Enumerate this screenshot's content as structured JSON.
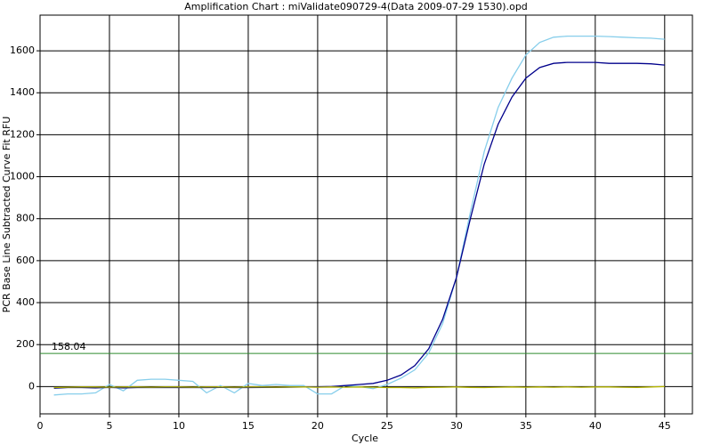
{
  "chart_data": {
    "type": "line",
    "title": "Amplification Chart : miValidate090729-4(Data 2009-07-29 1530).opd",
    "x_label": "Cycle",
    "y_label": "PCR Base Line Subtracted Curve Fit RFU",
    "x": [
      1,
      2,
      3,
      4,
      5,
      6,
      7,
      8,
      9,
      10,
      11,
      12,
      13,
      14,
      15,
      16,
      17,
      18,
      19,
      20,
      21,
      22,
      23,
      24,
      25,
      26,
      27,
      28,
      29,
      30,
      31,
      32,
      33,
      34,
      35,
      36,
      37,
      38,
      39,
      40,
      41,
      42,
      43,
      44,
      45
    ],
    "series": [
      {
        "color": "#87ceeb",
        "values": [
          -40,
          -35,
          -35,
          -30,
          10,
          -20,
          30,
          35,
          35,
          30,
          25,
          -30,
          5,
          -30,
          15,
          5,
          10,
          5,
          5,
          -35,
          -35,
          5,
          0,
          -10,
          10,
          40,
          80,
          160,
          300,
          520,
          830,
          1120,
          1330,
          1470,
          1580,
          1640,
          1665,
          1670,
          1670,
          1670,
          1668,
          1665,
          1662,
          1660,
          1655
        ]
      },
      {
        "color": "#00008b",
        "values": [
          -8,
          -5,
          -5,
          -6,
          -4,
          -6,
          -5,
          -4,
          -5,
          -4,
          -5,
          -5,
          -4,
          -5,
          -5,
          -4,
          -4,
          -3,
          -2,
          -1,
          0,
          5,
          10,
          15,
          30,
          55,
          100,
          180,
          320,
          520,
          800,
          1060,
          1250,
          1380,
          1470,
          1520,
          1540,
          1545,
          1545,
          1545,
          1540,
          1540,
          1540,
          1538,
          1532
        ]
      },
      {
        "color": "#b5b500",
        "values": [
          -5,
          -3,
          -2,
          -2,
          -3,
          -2,
          -2,
          -3,
          -2,
          -2,
          -3,
          -2,
          -2,
          -3,
          -2,
          -2,
          -3,
          -2,
          -2,
          -3,
          -2,
          -3,
          -2,
          -3,
          -5,
          -5,
          -6,
          -4,
          -3,
          -2,
          -4,
          -5,
          -3,
          -2,
          -3,
          -2,
          -3,
          -2,
          -3,
          -2,
          -2,
          -3,
          -4,
          -2,
          0
        ]
      }
    ],
    "threshold": 158.04,
    "threshold_color": "#2e8b2e",
    "xlim": [
      0,
      47
    ],
    "ylim": [
      -130,
      1770
    ],
    "xticks": [
      0,
      5,
      10,
      15,
      20,
      25,
      30,
      35,
      40,
      45
    ],
    "yticks": [
      0,
      200,
      400,
      600,
      800,
      1000,
      1200,
      1400,
      1600
    ],
    "grid": true
  }
}
